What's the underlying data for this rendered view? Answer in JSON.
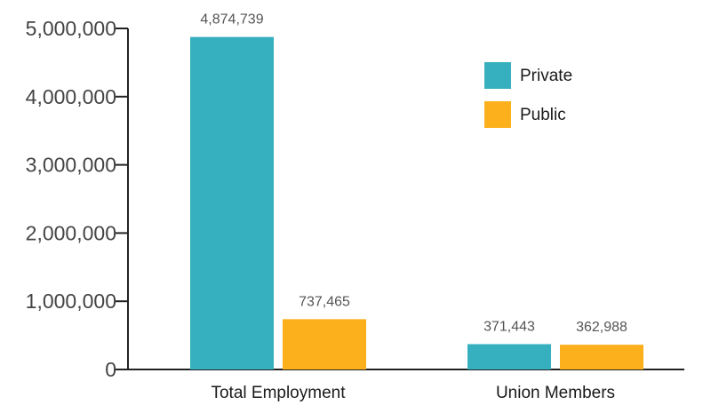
{
  "chart_data": {
    "type": "bar",
    "categories": [
      "Total Employment",
      "Union Members"
    ],
    "series": [
      {
        "name": "Private",
        "values": [
          4874739,
          371443
        ],
        "labels": [
          "4,874,739",
          "371,443"
        ],
        "color": "#36b0bf"
      },
      {
        "name": "Public",
        "values": [
          737465,
          362988
        ],
        "labels": [
          "737,465",
          "362,988"
        ],
        "color": "#fbb01c"
      }
    ],
    "yticks": [
      0,
      1000000,
      2000000,
      3000000,
      4000000,
      5000000
    ],
    "ytick_labels": [
      "0",
      "1,000,000",
      "2,000,000",
      "3,000,000",
      "4,000,000",
      "5,000,000"
    ],
    "ylim": [
      0,
      5000000
    ],
    "grid": false,
    "legend_position": "top-right"
  }
}
